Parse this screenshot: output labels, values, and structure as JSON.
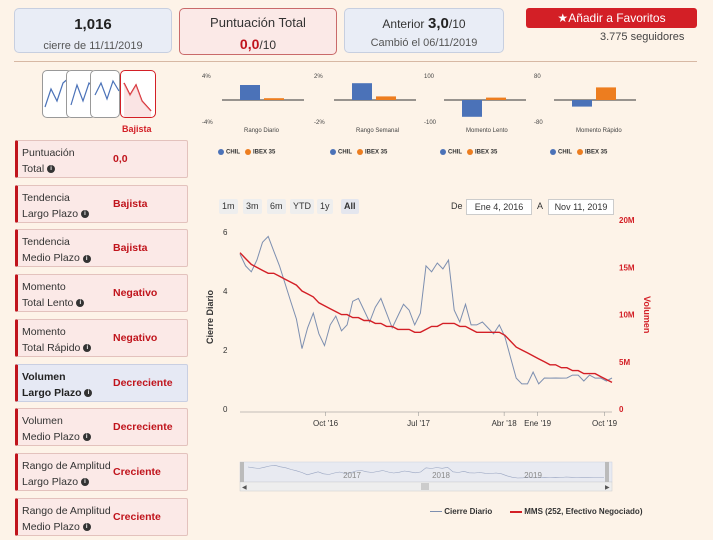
{
  "header": {
    "price": {
      "value": "1,016",
      "sub": "cierre de 11/11/2019"
    },
    "score": {
      "label": "Puntuación Total",
      "value": "0,0",
      "scale": "/10"
    },
    "previous": {
      "label": "Anterior",
      "value": "3,0",
      "scale": "/10",
      "sub": "Cambió el 06/11/2019"
    },
    "favorite_button": "Añadir a Favoritos",
    "followers": "3.775 seguidores",
    "accent": "#d31f26"
  },
  "trend_selector": {
    "active_label": "Bajista"
  },
  "sidebar": {
    "items": [
      {
        "line1": "Puntuación",
        "line2": "Total",
        "value": "0,0"
      },
      {
        "line1": "Tendencia",
        "line2": "Largo Plazo",
        "value": "Bajista"
      },
      {
        "line1": "Tendencia",
        "line2": "Medio Plazo",
        "value": "Bajista"
      },
      {
        "line1": "Momento",
        "line2": "Total Lento",
        "value": "Negativo"
      },
      {
        "line1": "Momento",
        "line2": "Total Rápido",
        "value": "Negativo"
      },
      {
        "line1": "Volumen",
        "line2": "Largo Plazo",
        "value": "Decreciente"
      },
      {
        "line1": "Volumen",
        "line2": "Medio Plazo",
        "value": "Decreciente"
      },
      {
        "line1": "Rango de Amplitud",
        "line2": "Largo Plazo",
        "value": "Creciente"
      },
      {
        "line1": "Rango de Amplitud",
        "line2": "Medio Plazo",
        "value": "Creciente"
      }
    ]
  },
  "mini_charts": [
    {
      "title": "Rango Diario",
      "ticks": [
        "4%",
        "-4%"
      ],
      "ylim": [
        -4,
        4
      ],
      "values": [
        2.5,
        0.3
      ]
    },
    {
      "title": "Rango Semanal",
      "ticks": [
        "2%",
        "-2%"
      ],
      "ylim": [
        -2,
        2
      ],
      "values": [
        1.4,
        0.3
      ]
    },
    {
      "title": "Momento Lento",
      "ticks": [
        "100",
        "-100"
      ],
      "ylim": [
        -100,
        100
      ],
      "values": [
        -70,
        10
      ]
    },
    {
      "title": "Momento Rápido",
      "ticks": [
        "80",
        "-80"
      ],
      "ylim": [
        -80,
        80
      ],
      "values": [
        -22,
        42
      ]
    }
  ],
  "mini_legend": {
    "a": "CHIL",
    "b": "IBEX 35",
    "color_a": "#4b72b8",
    "color_b": "#ed7d1f"
  },
  "range_buttons": [
    "1m",
    "3m",
    "6m",
    "YTD",
    "1y",
    "All"
  ],
  "date_range": {
    "from_label": "De",
    "from": "Ene 4, 2016",
    "to_label": "A",
    "to": "Nov 11, 2019"
  },
  "chart_data": {
    "type": "line",
    "ylabel": "Cierre Diario",
    "y2label": "Volumen",
    "y_ticks": [
      "0",
      "2",
      "4",
      "6"
    ],
    "y2_ticks": [
      "0",
      "5M",
      "10M",
      "15M",
      "20M"
    ],
    "ylim": [
      0,
      6
    ],
    "y2lim": [
      0,
      20000000
    ],
    "x_ticks": [
      "Oct '16",
      "Jul '17",
      "Abr '18",
      "Ene '19",
      "Oct '19"
    ],
    "x_tick_pos": [
      0.23,
      0.48,
      0.71,
      0.8,
      0.98
    ],
    "series": [
      {
        "name": "Cierre Diario",
        "color": "#7d8fb0",
        "values": [
          5.2,
          4.9,
          4.6,
          5.1,
          5.6,
          5.9,
          5.3,
          4.9,
          4.2,
          3.7,
          3.0,
          2.1,
          2.7,
          3.3,
          2.5,
          2.2,
          2.8,
          3.2,
          2.6,
          2.9,
          3.6,
          3.8,
          3.3,
          3.0,
          3.4,
          3.8,
          3.2,
          2.8,
          3.1,
          3.6,
          3.3,
          2.9,
          3.2,
          4.9,
          4.6,
          5.0,
          4.7,
          5.1,
          3.3,
          3.0,
          3.5,
          2.9,
          2.8,
          3.0,
          2.7,
          2.6,
          2.8,
          2.5,
          1.7,
          1.1,
          0.8,
          0.9,
          1.2,
          0.9,
          1.0,
          1.1,
          1.0,
          1.1,
          1.0,
          1.2,
          1.1,
          1.0,
          1.1,
          1.1,
          1.0,
          1.0,
          1.0
        ]
      },
      {
        "name": "MMS (252, Efectivo Negociado)",
        "color": "#d31f26",
        "values": [
          5.3,
          5.1,
          4.9,
          4.8,
          4.7,
          4.6,
          4.6,
          4.5,
          4.4,
          4.3,
          4.2,
          4.0,
          3.9,
          3.8,
          3.6,
          3.5,
          3.4,
          3.3,
          3.2,
          3.2,
          3.1,
          3.1,
          3.0,
          3.0,
          2.9,
          2.9,
          2.8,
          2.8,
          2.7,
          2.7,
          2.7,
          2.6,
          2.6,
          2.7,
          2.8,
          2.8,
          2.9,
          2.9,
          2.9,
          2.8,
          2.8,
          2.7,
          2.6,
          2.6,
          2.6,
          2.6,
          2.6,
          2.5,
          2.3,
          2.1,
          2.0,
          1.9,
          1.8,
          1.7,
          1.6,
          1.5,
          1.5,
          1.4,
          1.4,
          1.3,
          1.3,
          1.2,
          1.2,
          1.2,
          1.1,
          1.0,
          0.9
        ]
      }
    ],
    "navigator_labels": [
      "2017",
      "2018",
      "2019"
    ]
  }
}
